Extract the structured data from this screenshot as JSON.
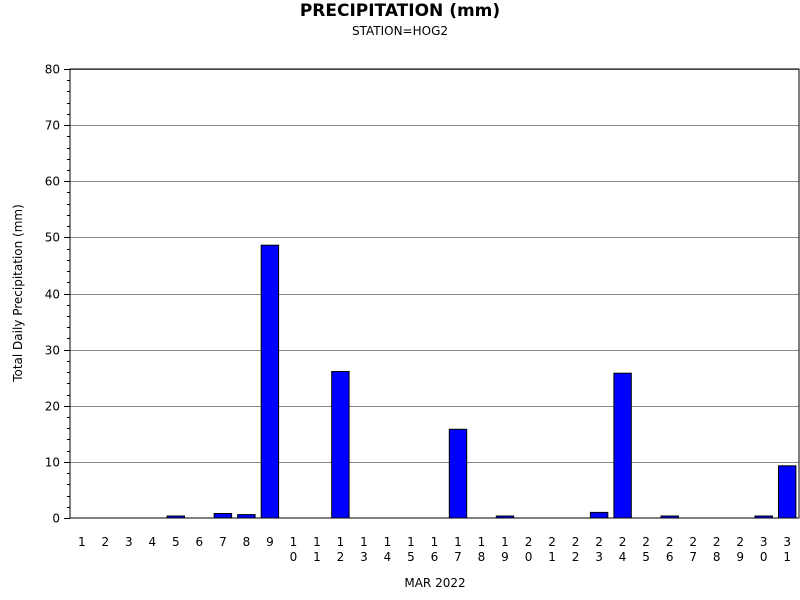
{
  "chart_data": {
    "type": "bar",
    "title": "PRECIPITATION (mm)",
    "subtitle": "STATION=HOG2",
    "xlabel": "MAR 2022",
    "ylabel": "Total Daily Precipitation (mm)",
    "ylim": [
      0,
      80
    ],
    "yticks": [
      0,
      10,
      20,
      30,
      40,
      50,
      60,
      70,
      80
    ],
    "grid": true,
    "bar_color": "#0000ff",
    "categories": [
      "1",
      "2",
      "3",
      "4",
      "5",
      "6",
      "7",
      "8",
      "9",
      "10",
      "11",
      "12",
      "13",
      "14",
      "15",
      "16",
      "17",
      "18",
      "19",
      "20",
      "21",
      "22",
      "23",
      "24",
      "25",
      "26",
      "27",
      "28",
      "29",
      "30",
      "31"
    ],
    "values": [
      0,
      0,
      0,
      0,
      0.2,
      0,
      0.8,
      0.6,
      48.6,
      0,
      0,
      26.1,
      0,
      0,
      0,
      0,
      15.8,
      0,
      0.2,
      0,
      0,
      0,
      1.0,
      25.8,
      0,
      0.2,
      0,
      0,
      0,
      0.2,
      9.3
    ]
  }
}
